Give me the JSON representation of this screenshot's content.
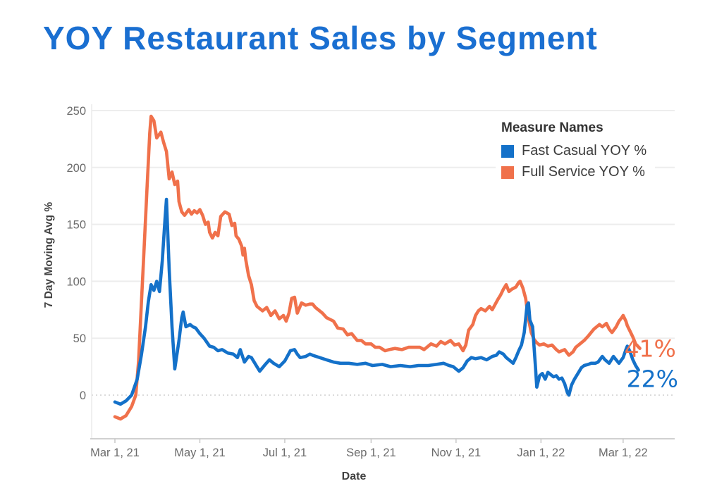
{
  "page": {
    "title": "YOY Restaurant Sales by Segment",
    "title_color": "#1a6fd1",
    "background": "#ffffff"
  },
  "chart_data": {
    "type": "line",
    "title": "YOY Restaurant Sales by Segment",
    "xlabel": "Date",
    "ylabel": "7 Day Moving Avg %",
    "grid": true,
    "zero_line": "dashed",
    "legend": {
      "title": "Measure Names",
      "position": "top-right",
      "entries": [
        "Fast Casual YOY %",
        "Full Service YOY %"
      ]
    },
    "ylim": [
      -40,
      260
    ],
    "yticks": [
      0,
      50,
      100,
      150,
      200,
      250
    ],
    "x_axis": {
      "unit": "days since Mar 1, 2021",
      "range": [
        0,
        380
      ],
      "ticks": [
        {
          "day": 0,
          "label": "Mar 1, 21"
        },
        {
          "day": 61,
          "label": "May 1, 21"
        },
        {
          "day": 122,
          "label": "Jul 1, 21"
        },
        {
          "day": 184,
          "label": "Sep 1, 21"
        },
        {
          "day": 245,
          "label": "Nov 1, 21"
        },
        {
          "day": 306,
          "label": "Jan 1, 22"
        },
        {
          "day": 365,
          "label": "Mar 1, 22"
        }
      ]
    },
    "series": [
      {
        "name": "Fast Casual YOY %",
        "color": "#1471c9",
        "end_label": "22%",
        "final_value": 22,
        "points": [
          [
            0,
            -6
          ],
          [
            4,
            -8
          ],
          [
            8,
            -5
          ],
          [
            12,
            0
          ],
          [
            16,
            14
          ],
          [
            19,
            35
          ],
          [
            22,
            60
          ],
          [
            24,
            82
          ],
          [
            26,
            97
          ],
          [
            28,
            92
          ],
          [
            30,
            100
          ],
          [
            32,
            91
          ],
          [
            34,
            118
          ],
          [
            36,
            155
          ],
          [
            37,
            172
          ],
          [
            39,
            110
          ],
          [
            41,
            60
          ],
          [
            43,
            23
          ],
          [
            46,
            48
          ],
          [
            48,
            68
          ],
          [
            49,
            73
          ],
          [
            51,
            60
          ],
          [
            54,
            62
          ],
          [
            56,
            60
          ],
          [
            58,
            59
          ],
          [
            61,
            54
          ],
          [
            64,
            50
          ],
          [
            68,
            43
          ],
          [
            71,
            42
          ],
          [
            74,
            39
          ],
          [
            77,
            40
          ],
          [
            81,
            37
          ],
          [
            85,
            36
          ],
          [
            88,
            33
          ],
          [
            90,
            40
          ],
          [
            93,
            29
          ],
          [
            96,
            34
          ],
          [
            98,
            33
          ],
          [
            101,
            27
          ],
          [
            104,
            21
          ],
          [
            108,
            27
          ],
          [
            111,
            31
          ],
          [
            114,
            28
          ],
          [
            118,
            25
          ],
          [
            122,
            30
          ],
          [
            126,
            39
          ],
          [
            129,
            40
          ],
          [
            131,
            36
          ],
          [
            133,
            33
          ],
          [
            137,
            34
          ],
          [
            140,
            36
          ],
          [
            142,
            35
          ],
          [
            147,
            33
          ],
          [
            152,
            31
          ],
          [
            157,
            29
          ],
          [
            162,
            28
          ],
          [
            168,
            28
          ],
          [
            174,
            27
          ],
          [
            180,
            28
          ],
          [
            185,
            26
          ],
          [
            192,
            27
          ],
          [
            198,
            25
          ],
          [
            205,
            26
          ],
          [
            212,
            25
          ],
          [
            218,
            26
          ],
          [
            225,
            26
          ],
          [
            231,
            27
          ],
          [
            236,
            28
          ],
          [
            240,
            26
          ],
          [
            243,
            25
          ],
          [
            247,
            21
          ],
          [
            250,
            24
          ],
          [
            253,
            30
          ],
          [
            256,
            33
          ],
          [
            259,
            32
          ],
          [
            263,
            33
          ],
          [
            267,
            31
          ],
          [
            271,
            34
          ],
          [
            274,
            35
          ],
          [
            276,
            38
          ],
          [
            279,
            36
          ],
          [
            281,
            33
          ],
          [
            284,
            30
          ],
          [
            286,
            28
          ],
          [
            288,
            33
          ],
          [
            290,
            39
          ],
          [
            292,
            44
          ],
          [
            294,
            55
          ],
          [
            296,
            79
          ],
          [
            297,
            81
          ],
          [
            298,
            66
          ],
          [
            300,
            60
          ],
          [
            302,
            25
          ],
          [
            303,
            7
          ],
          [
            305,
            17
          ],
          [
            307,
            19
          ],
          [
            309,
            14
          ],
          [
            311,
            20
          ],
          [
            313,
            18
          ],
          [
            315,
            16
          ],
          [
            317,
            17
          ],
          [
            319,
            14
          ],
          [
            321,
            15
          ],
          [
            323,
            10
          ],
          [
            325,
            2
          ],
          [
            326,
            0
          ],
          [
            328,
            9
          ],
          [
            330,
            14
          ],
          [
            333,
            20
          ],
          [
            335,
            24
          ],
          [
            337,
            26
          ],
          [
            340,
            27
          ],
          [
            342,
            28
          ],
          [
            345,
            28
          ],
          [
            347,
            29
          ],
          [
            350,
            34
          ],
          [
            352,
            31
          ],
          [
            355,
            28
          ],
          [
            358,
            34
          ],
          [
            360,
            31
          ],
          [
            362,
            28
          ],
          [
            365,
            33
          ],
          [
            367,
            40
          ],
          [
            368,
            43
          ],
          [
            370,
            38
          ],
          [
            372,
            31
          ],
          [
            374,
            26
          ],
          [
            376,
            22
          ]
        ]
      },
      {
        "name": "Full Service YOY %",
        "color": "#f0714b",
        "end_label": "41%",
        "final_value": 41,
        "points": [
          [
            0,
            -19
          ],
          [
            4,
            -21
          ],
          [
            8,
            -18
          ],
          [
            12,
            -10
          ],
          [
            15,
            0
          ],
          [
            17,
            30
          ],
          [
            19,
            80
          ],
          [
            21,
            130
          ],
          [
            23,
            180
          ],
          [
            25,
            230
          ],
          [
            26,
            245
          ],
          [
            28,
            241
          ],
          [
            30,
            226
          ],
          [
            33,
            231
          ],
          [
            35,
            222
          ],
          [
            37,
            214
          ],
          [
            39,
            190
          ],
          [
            41,
            196
          ],
          [
            43,
            185
          ],
          [
            45,
            188
          ],
          [
            46,
            170
          ],
          [
            48,
            161
          ],
          [
            50,
            158
          ],
          [
            53,
            163
          ],
          [
            55,
            159
          ],
          [
            57,
            162
          ],
          [
            59,
            160
          ],
          [
            61,
            163
          ],
          [
            63,
            158
          ],
          [
            65,
            150
          ],
          [
            67,
            152
          ],
          [
            68,
            143
          ],
          [
            70,
            138
          ],
          [
            72,
            143
          ],
          [
            74,
            140
          ],
          [
            76,
            157
          ],
          [
            79,
            161
          ],
          [
            82,
            159
          ],
          [
            84,
            149
          ],
          [
            86,
            151
          ],
          [
            87,
            140
          ],
          [
            89,
            137
          ],
          [
            91,
            131
          ],
          [
            92,
            123
          ],
          [
            93,
            129
          ],
          [
            94,
            119
          ],
          [
            96,
            105
          ],
          [
            98,
            97
          ],
          [
            100,
            83
          ],
          [
            102,
            78
          ],
          [
            106,
            74
          ],
          [
            109,
            77
          ],
          [
            112,
            70
          ],
          [
            115,
            74
          ],
          [
            118,
            67
          ],
          [
            121,
            70
          ],
          [
            123,
            65
          ],
          [
            125,
            72
          ],
          [
            127,
            85
          ],
          [
            129,
            86
          ],
          [
            131,
            72
          ],
          [
            134,
            81
          ],
          [
            137,
            79
          ],
          [
            140,
            80
          ],
          [
            142,
            80
          ],
          [
            144,
            77
          ],
          [
            149,
            72
          ],
          [
            152,
            68
          ],
          [
            157,
            65
          ],
          [
            160,
            59
          ],
          [
            164,
            58
          ],
          [
            167,
            53
          ],
          [
            170,
            54
          ],
          [
            174,
            48
          ],
          [
            177,
            48
          ],
          [
            180,
            45
          ],
          [
            184,
            45
          ],
          [
            187,
            42
          ],
          [
            190,
            42
          ],
          [
            194,
            39
          ],
          [
            197,
            40
          ],
          [
            201,
            41
          ],
          [
            206,
            40
          ],
          [
            211,
            42
          ],
          [
            216,
            42
          ],
          [
            219,
            42
          ],
          [
            222,
            40
          ],
          [
            227,
            45
          ],
          [
            231,
            43
          ],
          [
            234,
            47
          ],
          [
            237,
            45
          ],
          [
            241,
            48
          ],
          [
            244,
            44
          ],
          [
            247,
            45
          ],
          [
            250,
            39
          ],
          [
            252,
            44
          ],
          [
            254,
            57
          ],
          [
            257,
            62
          ],
          [
            259,
            70
          ],
          [
            261,
            74
          ],
          [
            263,
            76
          ],
          [
            266,
            74
          ],
          [
            269,
            78
          ],
          [
            271,
            75
          ],
          [
            275,
            84
          ],
          [
            277,
            88
          ],
          [
            279,
            93
          ],
          [
            281,
            97
          ],
          [
            283,
            91
          ],
          [
            285,
            93
          ],
          [
            288,
            95
          ],
          [
            290,
            99
          ],
          [
            291,
            100
          ],
          [
            293,
            94
          ],
          [
            295,
            85
          ],
          [
            297,
            67
          ],
          [
            299,
            55
          ],
          [
            301,
            49
          ],
          [
            303,
            46
          ],
          [
            305,
            44
          ],
          [
            308,
            45
          ],
          [
            311,
            43
          ],
          [
            314,
            44
          ],
          [
            317,
            40
          ],
          [
            319,
            38
          ],
          [
            321,
            39
          ],
          [
            323,
            40
          ],
          [
            326,
            35
          ],
          [
            329,
            38
          ],
          [
            331,
            42
          ],
          [
            334,
            45
          ],
          [
            337,
            48
          ],
          [
            340,
            52
          ],
          [
            342,
            55
          ],
          [
            344,
            58
          ],
          [
            346,
            60
          ],
          [
            348,
            62
          ],
          [
            350,
            60
          ],
          [
            353,
            63
          ],
          [
            355,
            58
          ],
          [
            357,
            55
          ],
          [
            360,
            60
          ],
          [
            362,
            65
          ],
          [
            364,
            68
          ],
          [
            365,
            70
          ],
          [
            367,
            65
          ],
          [
            368,
            61
          ],
          [
            370,
            56
          ],
          [
            372,
            51
          ],
          [
            374,
            45
          ],
          [
            377,
            41
          ]
        ]
      }
    ]
  }
}
